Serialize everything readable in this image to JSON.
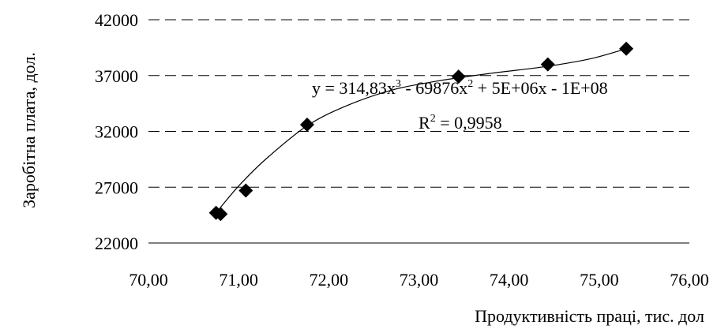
{
  "chart_data": {
    "type": "scatter",
    "title": "",
    "xlabel": "Продуктивність праці, тис. дол",
    "ylabel": "Заробітна плата, дол.",
    "xlim": [
      70,
      76
    ],
    "ylim": [
      22000,
      42000
    ],
    "x_ticks": [
      "70,00",
      "71,00",
      "72,00",
      "73,00",
      "74,00",
      "75,00",
      "76,00"
    ],
    "y_ticks": [
      "22000",
      "27000",
      "32000",
      "37000",
      "42000"
    ],
    "grid": "horizontal dashed",
    "marker": "diamond",
    "marker_color": "#000000",
    "points": [
      {
        "x": 70.75,
        "y": 24700
      },
      {
        "x": 70.8,
        "y": 24600
      },
      {
        "x": 71.08,
        "y": 26700
      },
      {
        "x": 71.76,
        "y": 32600
      },
      {
        "x": 73.44,
        "y": 36900
      },
      {
        "x": 74.43,
        "y": 38000
      },
      {
        "x": 75.3,
        "y": 39400
      }
    ],
    "trendline": {
      "type": "polynomial-3",
      "equation": {
        "p1": "y = 314,83x",
        "e1": "3",
        "p2": " - 69876x",
        "e2": "2",
        "p3": " + 5E+06x - 1E+08"
      },
      "r2": {
        "label": "R",
        "exp": "2",
        "value": " = 0,9958"
      },
      "curve": [
        {
          "x": 70.75,
          "y": 24700
        },
        {
          "x": 71.0,
          "y": 27100
        },
        {
          "x": 71.3,
          "y": 29500
        },
        {
          "x": 71.76,
          "y": 32500
        },
        {
          "x": 72.2,
          "y": 34300
        },
        {
          "x": 72.7,
          "y": 35700
        },
        {
          "x": 73.2,
          "y": 36500
        },
        {
          "x": 73.8,
          "y": 37200
        },
        {
          "x": 74.4,
          "y": 37800
        },
        {
          "x": 74.9,
          "y": 38500
        },
        {
          "x": 75.3,
          "y": 39400
        }
      ]
    }
  }
}
